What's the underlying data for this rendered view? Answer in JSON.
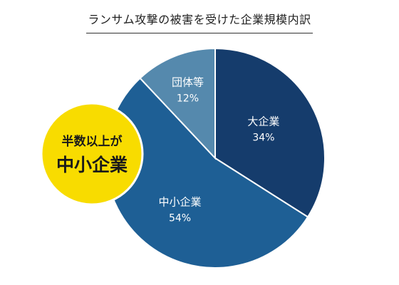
{
  "chart_data": {
    "type": "pie",
    "title": "ランサム攻撃の被害を受けた企業規模内訳",
    "categories": [
      "大企業",
      "中小企業",
      "団体等"
    ],
    "values": [
      34,
      54,
      12
    ],
    "value_labels": [
      "34%",
      "54%",
      "12%"
    ],
    "colors": [
      "#153c6c",
      "#1e5f95",
      "#5589ad"
    ],
    "start": "12 o'clock",
    "direction": "clockwise",
    "legend": "none"
  },
  "callout": {
    "line1": "半数以上が",
    "line2": "中小企業",
    "color": "#f8dc00"
  }
}
